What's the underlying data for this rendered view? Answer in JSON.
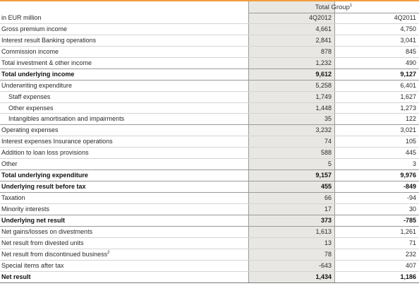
{
  "table": {
    "group_title": "Total Group",
    "group_title_footnote": "1",
    "unit_label": "in EUR million",
    "col1_header": "4Q2012",
    "col2_header": "4Q2011",
    "rows": [
      {
        "label": "Gross premium income",
        "v1": "4,661",
        "v2": "4,750"
      },
      {
        "label": "Interest result Banking operations",
        "v1": "2,841",
        "v2": "3,041"
      },
      {
        "label": "Commission income",
        "v1": "878",
        "v2": "845"
      },
      {
        "label": "Total investment & other income",
        "v1": "1,232",
        "v2": "490"
      },
      {
        "label": "Total underlying income",
        "v1": "9,612",
        "v2": "9,127"
      },
      {
        "label": "Underwriting expenditure",
        "v1": "5,258",
        "v2": "6,401"
      },
      {
        "label": "Staff expenses",
        "v1": "1,749",
        "v2": "1,627"
      },
      {
        "label": "Other expenses",
        "v1": "1,448",
        "v2": "1,273"
      },
      {
        "label": "Intangibles amortisation and impairments",
        "v1": "35",
        "v2": "122"
      },
      {
        "label": "Operating expenses",
        "v1": "3,232",
        "v2": "3,021"
      },
      {
        "label": "Interest expenses Insurance operations",
        "v1": "74",
        "v2": "105"
      },
      {
        "label": "Addition to loan loss provisions",
        "v1": "588",
        "v2": "445"
      },
      {
        "label": "Other",
        "v1": "5",
        "v2": "3"
      },
      {
        "label": "Total underlying expenditure",
        "v1": "9,157",
        "v2": "9,976"
      },
      {
        "label": "Underlying result before tax",
        "v1": "455",
        "v2": "-849"
      },
      {
        "label": "Taxation",
        "v1": "66",
        "v2": "-94"
      },
      {
        "label": "Minority interests",
        "v1": "17",
        "v2": "30"
      },
      {
        "label": "Underlying net result",
        "v1": "373",
        "v2": "-785"
      },
      {
        "label": "Net gains/losses on divestments",
        "v1": "1,613",
        "v2": "1,261"
      },
      {
        "label": "Net result from divested units",
        "v1": "13",
        "v2": "71"
      },
      {
        "label": "Net result from discontinued business",
        "footnote": "2",
        "v1": "78",
        "v2": "232"
      },
      {
        "label": "Special items after tax",
        "v1": "-643",
        "v2": "407"
      },
      {
        "label": "Net result",
        "v1": "1,434",
        "v2": "1,186"
      }
    ]
  }
}
